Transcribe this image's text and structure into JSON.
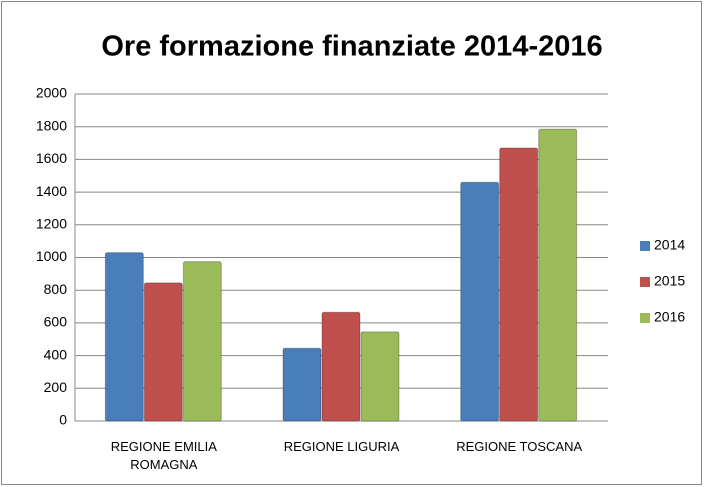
{
  "chart_data": {
    "type": "bar",
    "title": "Ore formazione finanziate 2014-2016",
    "categories": [
      "REGIONE EMILIA ROMAGNA",
      "REGIONE LIGURIA",
      "REGIONE TOSCANA"
    ],
    "series": [
      {
        "name": "2014",
        "color": "#4a7ebb",
        "values": [
          1030,
          445,
          1460
        ]
      },
      {
        "name": "2015",
        "color": "#c0504d",
        "values": [
          845,
          665,
          1670
        ]
      },
      {
        "name": "2016",
        "color": "#9bbb59",
        "values": [
          975,
          545,
          1785
        ]
      }
    ],
    "ylim": [
      0,
      2000
    ],
    "yticks": [
      0,
      200,
      400,
      600,
      800,
      1000,
      1200,
      1400,
      1600,
      1800,
      2000
    ],
    "grid": true,
    "legend": "right"
  }
}
